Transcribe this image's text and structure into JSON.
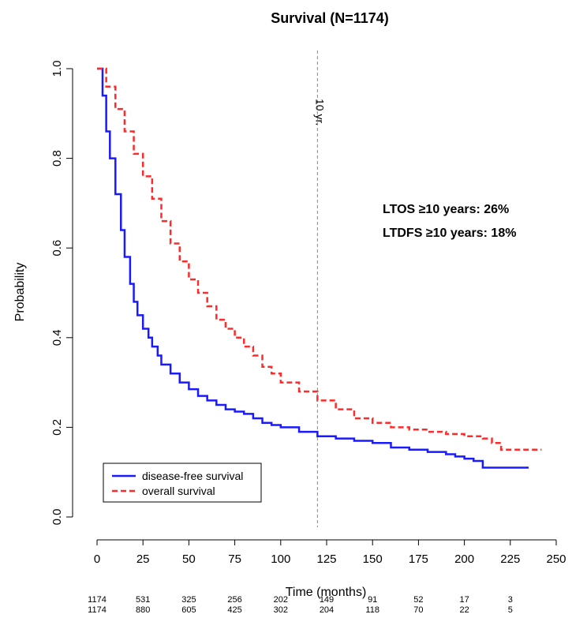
{
  "chart_data": {
    "type": "line",
    "title": "Survival (N=1174)",
    "xlabel": "Time (months)",
    "ylabel": "Probability",
    "xlim": [
      0,
      250
    ],
    "ylim": [
      0,
      1.0
    ],
    "x_ticks": [
      0,
      25,
      50,
      75,
      100,
      125,
      150,
      175,
      200,
      225,
      250
    ],
    "y_ticks": [
      "0.0",
      "0.2",
      "0.4",
      "0.6",
      "0.8",
      "1.0"
    ],
    "grid": false,
    "legend_position": "bottom-left",
    "reference_line": {
      "x": 120,
      "label": "10 yr."
    },
    "annotations": [
      "LTOS ≥10 years: 26%",
      "LTDFS ≥10 years: 18%"
    ],
    "series": [
      {
        "name": "disease-free survival",
        "color": "#1a1aff",
        "style": "solid",
        "x": [
          0,
          3,
          5,
          7,
          10,
          13,
          15,
          18,
          20,
          22,
          25,
          28,
          30,
          33,
          35,
          40,
          45,
          50,
          55,
          60,
          65,
          70,
          75,
          80,
          85,
          90,
          95,
          100,
          110,
          120,
          130,
          140,
          150,
          160,
          170,
          180,
          190,
          195,
          200,
          205,
          210,
          215,
          220,
          225,
          230,
          235
        ],
        "y": [
          1.0,
          0.94,
          0.86,
          0.8,
          0.72,
          0.64,
          0.58,
          0.52,
          0.48,
          0.45,
          0.42,
          0.4,
          0.38,
          0.36,
          0.34,
          0.32,
          0.3,
          0.285,
          0.27,
          0.26,
          0.25,
          0.24,
          0.235,
          0.23,
          0.22,
          0.21,
          0.205,
          0.2,
          0.19,
          0.18,
          0.175,
          0.17,
          0.165,
          0.155,
          0.15,
          0.145,
          0.14,
          0.135,
          0.13,
          0.125,
          0.11,
          0.11,
          0.11,
          0.11,
          0.11,
          0.11
        ]
      },
      {
        "name": "overall survival",
        "color": "#ff2a2a",
        "style": "dashed",
        "x": [
          0,
          5,
          10,
          15,
          20,
          25,
          30,
          35,
          40,
          45,
          50,
          55,
          60,
          65,
          70,
          75,
          80,
          85,
          90,
          95,
          100,
          110,
          120,
          130,
          140,
          150,
          160,
          170,
          180,
          190,
          200,
          210,
          215,
          220,
          230,
          242
        ],
        "y": [
          1.0,
          0.96,
          0.91,
          0.86,
          0.81,
          0.76,
          0.71,
          0.66,
          0.61,
          0.57,
          0.53,
          0.5,
          0.47,
          0.44,
          0.42,
          0.4,
          0.38,
          0.36,
          0.335,
          0.32,
          0.3,
          0.28,
          0.26,
          0.24,
          0.22,
          0.21,
          0.2,
          0.195,
          0.19,
          0.185,
          0.18,
          0.175,
          0.165,
          0.15,
          0.15,
          0.15
        ]
      }
    ],
    "risk_table": {
      "times": [
        0,
        25,
        50,
        75,
        100,
        125,
        150,
        175,
        200,
        225
      ],
      "rows": [
        {
          "series": "disease-free survival",
          "counts": [
            1174,
            531,
            325,
            256,
            202,
            149,
            91,
            52,
            17,
            3
          ]
        },
        {
          "series": "overall survival",
          "counts": [
            1174,
            880,
            605,
            425,
            302,
            204,
            118,
            70,
            22,
            5
          ]
        }
      ]
    }
  }
}
